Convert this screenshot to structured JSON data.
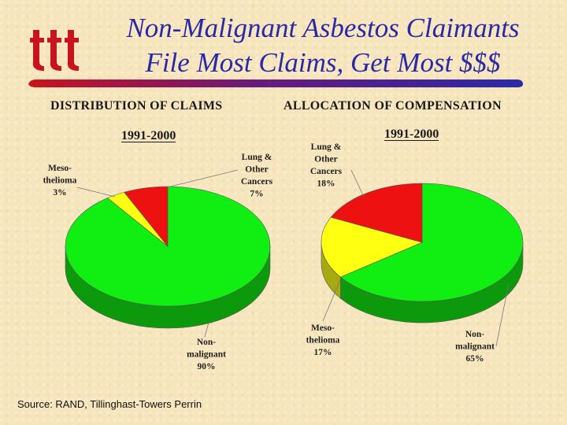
{
  "slide": {
    "title_line1": "Non-Malignant Asbestos Claimants",
    "title_line2": "File Most Claims, Get Most $$$",
    "logo_icon": "iii-logo-icon",
    "source": "Source: RAND, Tillinghast-Towers Perrin",
    "accent_color": "#2a2aa8"
  },
  "chart_data": [
    {
      "type": "pie",
      "title": "DISTRIBUTION OF CLAIMS",
      "subtitle": "1991-2000",
      "labels": [
        "Non-malignant",
        "Meso-thelioma",
        "Lung & Other Cancers"
      ],
      "values": [
        90,
        3,
        7
      ],
      "colors": [
        "#11ee11",
        "#ffff11",
        "#ee1111"
      ],
      "slice_labels": [
        [
          "Non-",
          "malignant",
          "90%"
        ],
        [
          "Meso-",
          "thelioma",
          "3%"
        ],
        [
          "Lung &",
          "Other",
          "Cancers",
          "7%"
        ]
      ]
    },
    {
      "type": "pie",
      "title": "ALLOCATION OF COMPENSATION",
      "subtitle": "1991-2000",
      "labels": [
        "Non-malignant",
        "Meso-thelioma",
        "Lung & Other Cancers"
      ],
      "values": [
        65,
        17,
        18
      ],
      "colors": [
        "#11ee11",
        "#ffff11",
        "#ee1111"
      ],
      "slice_labels": [
        [
          "Non-",
          "malignant",
          "65%"
        ],
        [
          "Meso-",
          "thelioma",
          "17%"
        ],
        [
          "Lung &",
          "Other",
          "Cancers",
          "18%"
        ]
      ]
    }
  ]
}
